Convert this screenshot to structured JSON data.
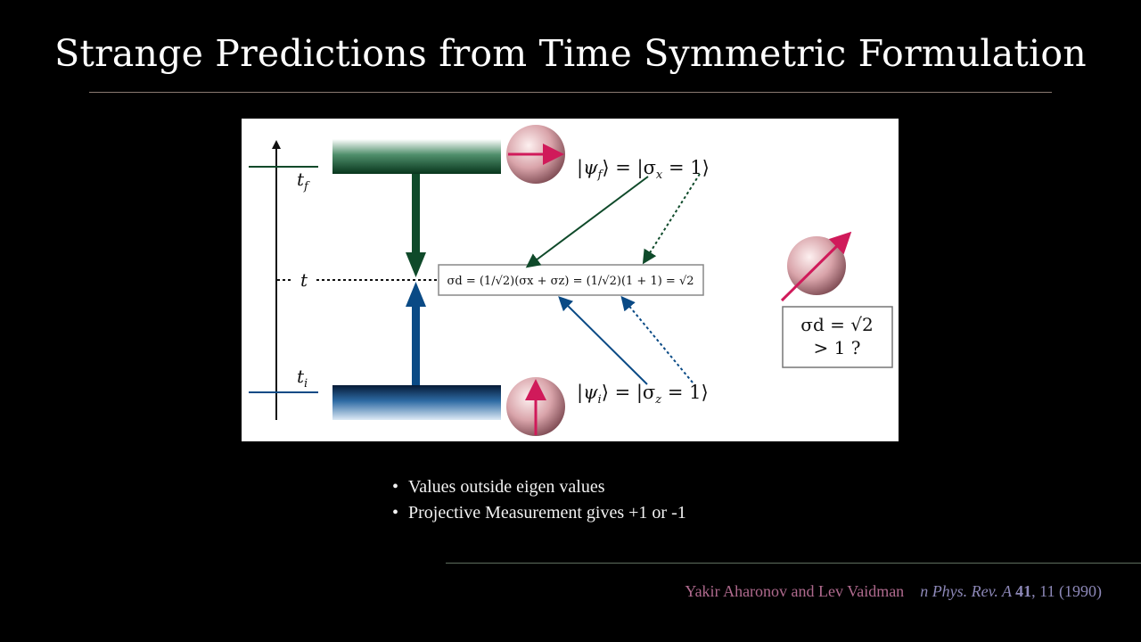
{
  "slide": {
    "title": "Strange Predictions from Time Symmetric Formulation"
  },
  "figure": {
    "time_labels": {
      "final": "t",
      "final_sub": "f",
      "mid": "t",
      "initial": "t",
      "initial_sub": "i"
    },
    "final_state": {
      "lhs": "|ψ",
      "lhs_sub": "f",
      "rhs": "⟩ = |σ",
      "rhs_sub": "x",
      "tail": " = 1⟩"
    },
    "initial_state": {
      "lhs": "|ψ",
      "lhs_sub": "i",
      "rhs": "⟩ = |σ",
      "rhs_sub": "z",
      "tail": " = 1⟩"
    },
    "weak_value": "σd = (1/√2)(σx + σz) = (1/√2)(1 + 1) = √2",
    "result_line1": "σd = √2",
    "result_line2": "> 1 ?",
    "colors": {
      "future": "#0f4a2a",
      "past": "#0a4a85",
      "spin_arrow": "#d01a5a",
      "sphere": "#e8b8bc"
    }
  },
  "bullets": [
    "Values outside eigen values",
    "Projective Measurement gives +1 or -1"
  ],
  "bullet_symbol": "•",
  "footer": {
    "authors": "Yakir Aharonov and Lev Vaidman",
    "journal_prefix": "n Phys. Rev. A ",
    "volume": "41",
    "rest": ", 11 (1990)"
  }
}
